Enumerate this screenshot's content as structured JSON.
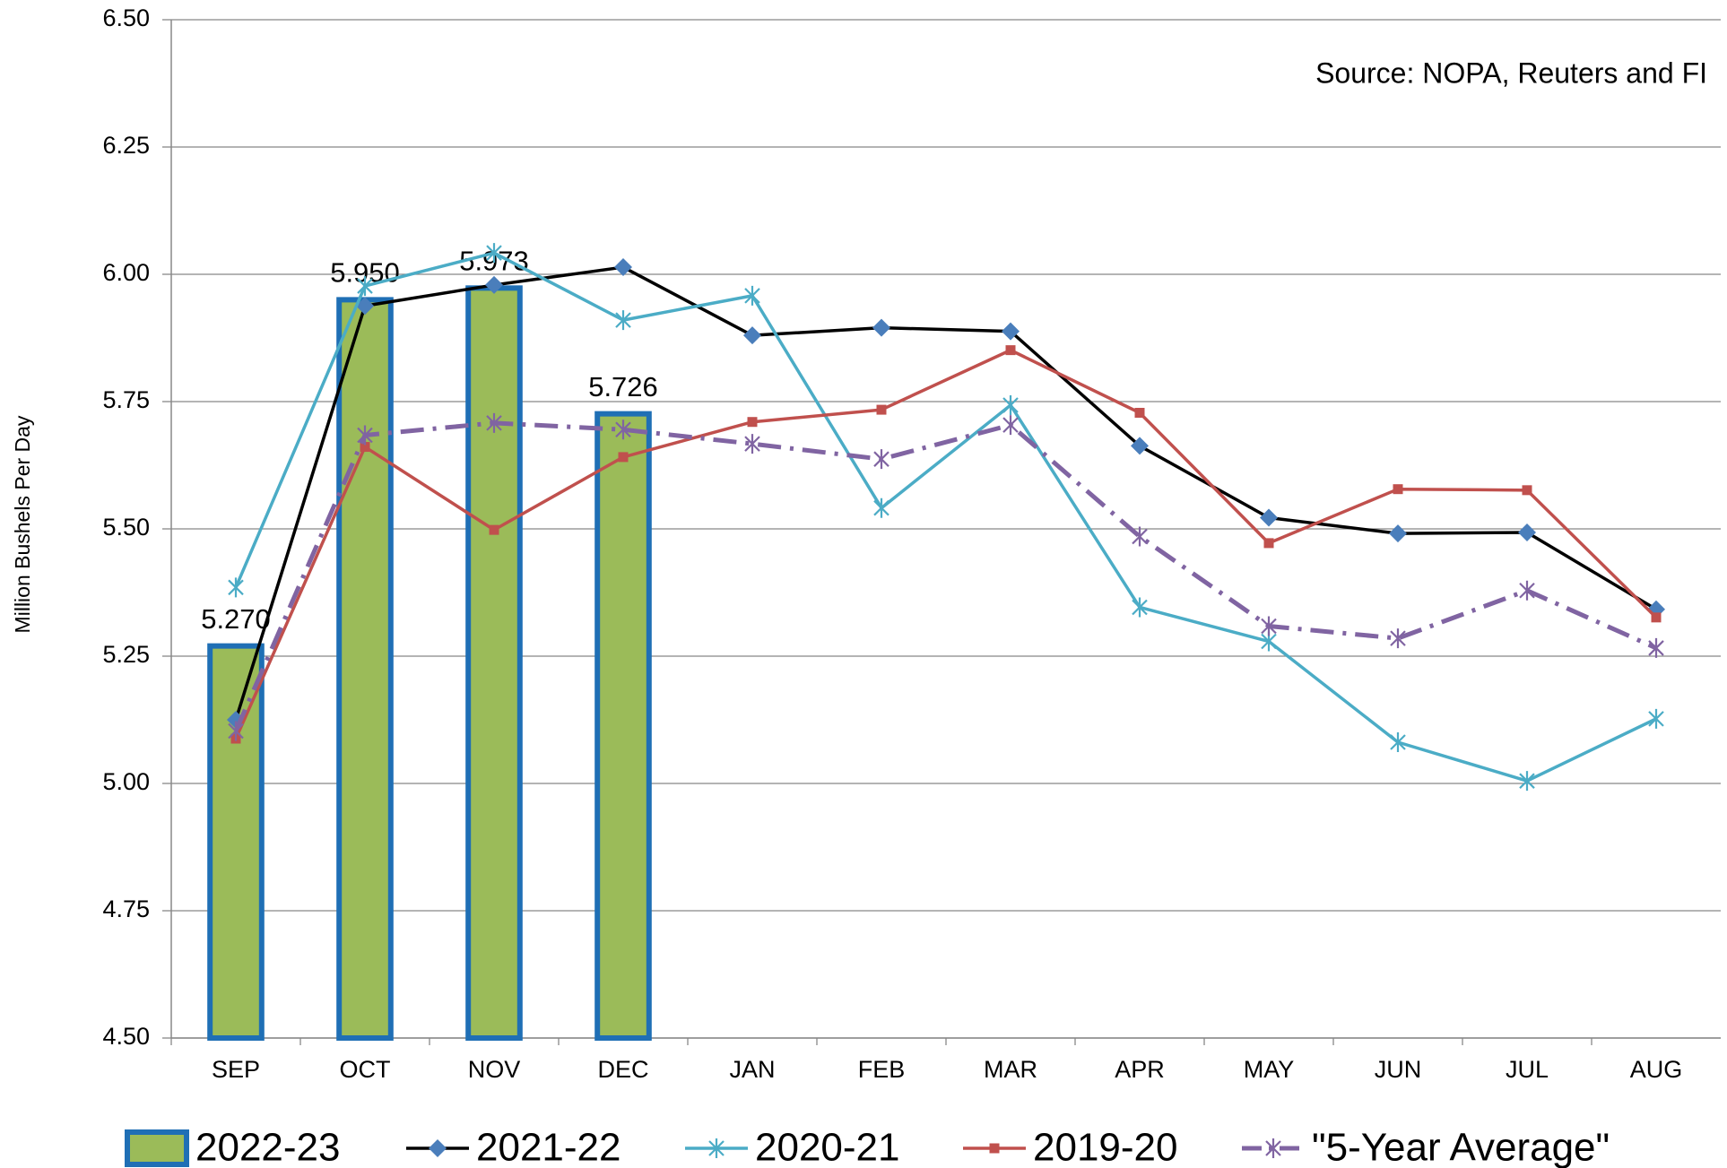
{
  "chart_data": {
    "type": "bar-line",
    "y_label": "Million Bushels Per Day",
    "annotation": "Source: NOPA, Reuters and FI",
    "categories": [
      "SEP",
      "OCT",
      "NOV",
      "DEC",
      "JAN",
      "FEB",
      "MAR",
      "APR",
      "MAY",
      "JUN",
      "JUL",
      "AUG"
    ],
    "ylim": [
      4.5,
      6.5
    ],
    "yticks": [
      {
        "value": 4.5,
        "label": "4.50"
      },
      4.75,
      {
        "value": 5,
        "label": "5.00"
      },
      5.25,
      {
        "value": 5.5,
        "label": "5.50"
      },
      5.75,
      {
        "value": 6,
        "label": "6.00"
      },
      6.25,
      {
        "value": 6.5,
        "label": "6.50"
      }
    ],
    "grid": true,
    "legend": "bottom",
    "series": [
      {
        "name": "2022-23",
        "type": "bar",
        "color": "#9bbb59",
        "edge_color": "#1f6fb5",
        "values": [
          5.27,
          5.95,
          5.973,
          5.726,
          null,
          null,
          null,
          null,
          null,
          null,
          null,
          null
        ],
        "value_labels": [
          "5.270",
          "5.950",
          "5.973",
          "5.726",
          null,
          null,
          null,
          null,
          null,
          null,
          null,
          null
        ]
      },
      {
        "name": "2021-22",
        "type": "line",
        "color": "#000000",
        "marker": "diamond",
        "marker_color": "#4a7ebb",
        "values": [
          5.125,
          5.938,
          5.979,
          6.014,
          5.88,
          5.895,
          5.888,
          5.663,
          5.522,
          5.491,
          5.493,
          5.342
        ]
      },
      {
        "name": "2020-21",
        "type": "line",
        "color": "#4bacc6",
        "marker": "star",
        "marker_color": "#4bacc6",
        "values": [
          5.385,
          5.977,
          6.042,
          5.91,
          5.958,
          5.541,
          5.743,
          5.346,
          5.279,
          5.081,
          5.005,
          5.127
        ]
      },
      {
        "name": "2019-20",
        "type": "line",
        "color": "#c0504d",
        "marker": "square",
        "marker_color": "#c0504d",
        "values": [
          5.088,
          5.661,
          5.498,
          5.641,
          5.71,
          5.734,
          5.851,
          5.728,
          5.472,
          5.578,
          5.576,
          5.326
        ]
      },
      {
        "name": "\"5-Year Average\"",
        "type": "line",
        "color": "#8064a2",
        "marker": "star",
        "marker_color": "#8064a2",
        "dash": "dashdot",
        "values": [
          5.103,
          5.684,
          5.708,
          5.695,
          5.667,
          5.637,
          5.704,
          5.485,
          5.309,
          5.285,
          5.379,
          5.266
        ]
      }
    ]
  }
}
